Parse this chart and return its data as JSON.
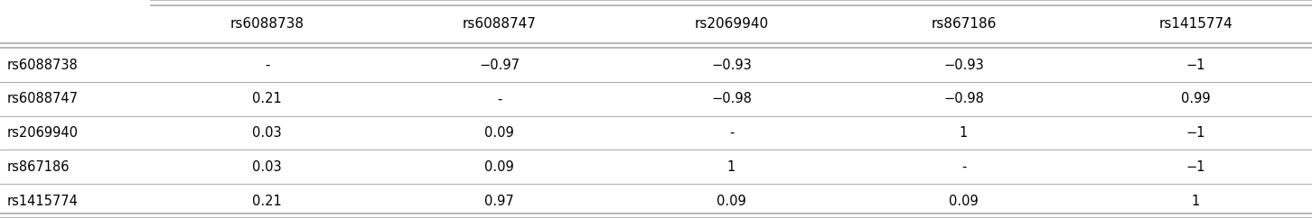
{
  "col_headers": [
    "rs6088738",
    "rs6088747",
    "rs2069940",
    "rs867186",
    "rs1415774"
  ],
  "row_headers": [
    "rs6088738",
    "rs6088747",
    "rs2069940",
    "rs867186",
    "rs1415774"
  ],
  "cells": [
    [
      "-",
      "−0.97",
      "−0.93",
      "−0.93",
      "−1"
    ],
    [
      "0.21",
      "-",
      "−0.98",
      "−0.98",
      "0.99"
    ],
    [
      "0.03",
      "0.09",
      "-",
      "1",
      "−1"
    ],
    [
      "0.03",
      "0.09",
      "1",
      "-",
      "−1"
    ],
    [
      "0.21",
      "0.97",
      "0.09",
      "0.09",
      "1"
    ]
  ],
  "bg_color": "#ffffff",
  "header_text_color": "#000000",
  "cell_text_color": "#000000",
  "line_color": "#aaaaaa",
  "header_font_size": 11,
  "cell_font_size": 10.5,
  "row_label_font_size": 10.5
}
